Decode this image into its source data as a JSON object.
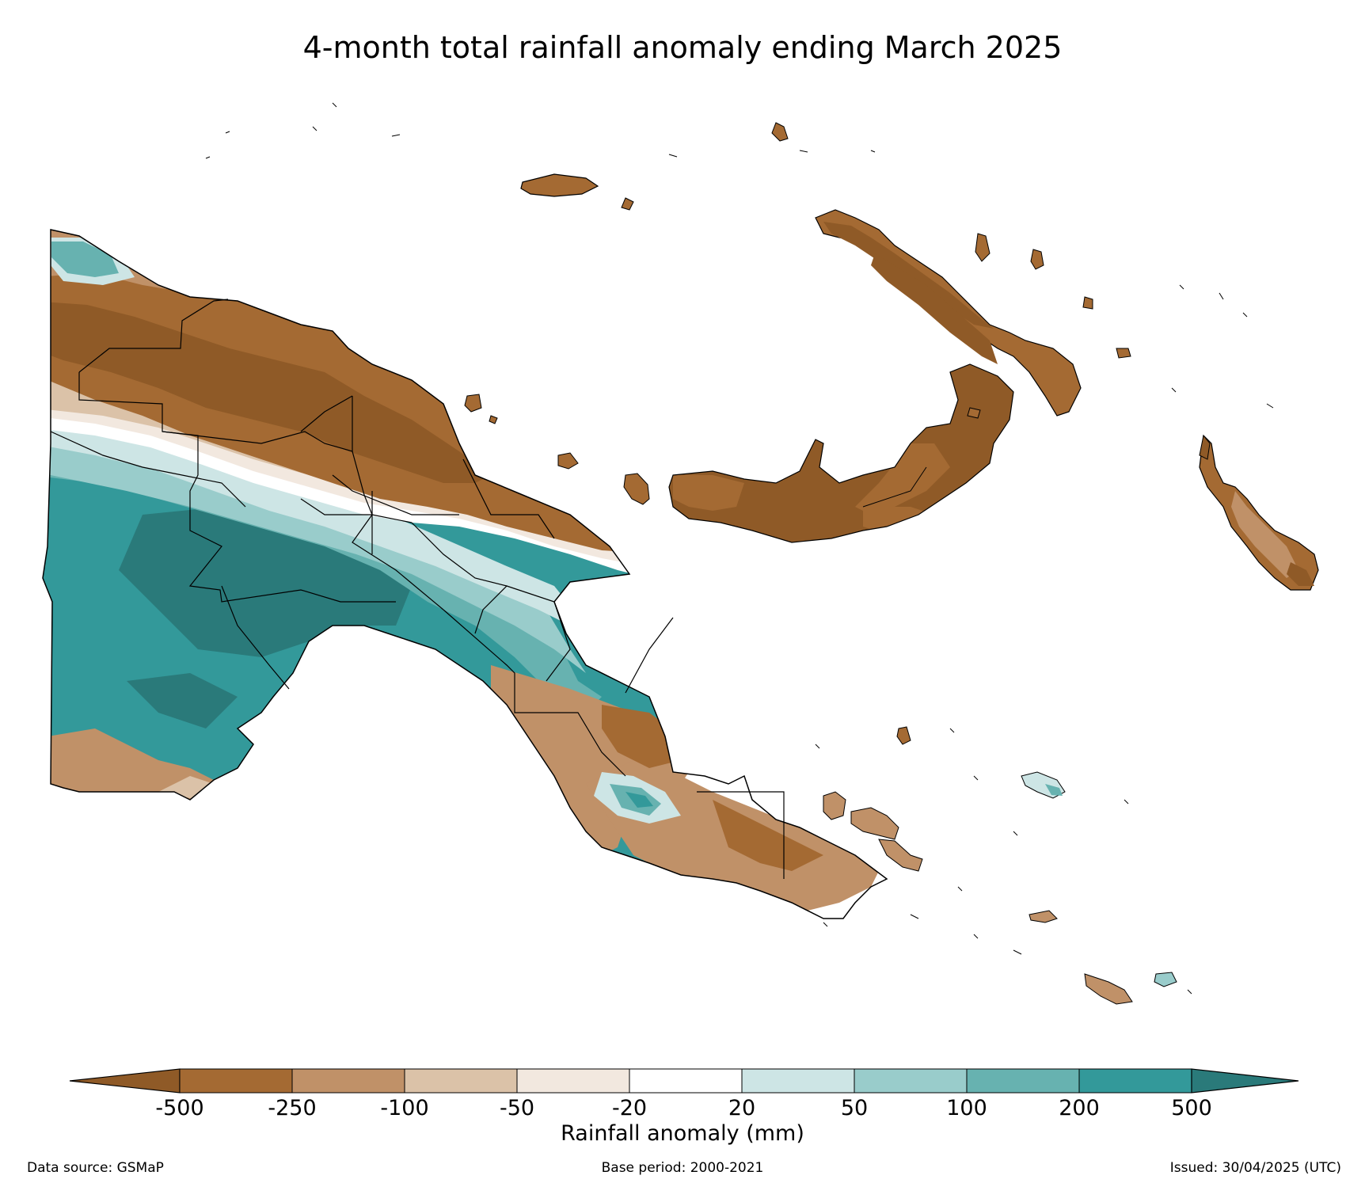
{
  "title": "4-month total rainfall anomaly ending March 2025",
  "colorbar": {
    "label": "Rainfall anomaly (mm)",
    "ticks": [
      "-500",
      "-250",
      "-100",
      "-50",
      "-20",
      "20",
      "50",
      "100",
      "200",
      "500"
    ],
    "colors": [
      "#a46a33",
      "#c09168",
      "#dbc2a8",
      "#f2e8df",
      "#ffffff",
      "#cde5e5",
      "#99cccb",
      "#67b2b0",
      "#33999a"
    ],
    "under_color": "#8f5a27",
    "over_color": "#2a7a7a"
  },
  "legend_colors": {
    "very_dry": "#8f5a27",
    "dry": "#a46a33",
    "moderately_dry": "#c09168",
    "slightly_dry": "#dbc2a8",
    "near_normal": "#ffffff",
    "slightly_wet": "#cde5e5",
    "moderately_wet": "#99cccb",
    "wet": "#67b2b0",
    "very_wet": "#33999a",
    "extremely_wet": "#2a7a7a"
  },
  "footer": {
    "source": "Data source: GSMaP",
    "base_period": "Base period: 2000-2021",
    "issued": "Issued: 30/04/2025 (UTC)"
  }
}
